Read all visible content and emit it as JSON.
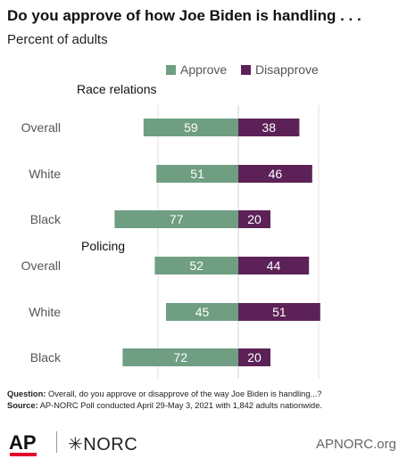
{
  "title": "Do you approve of how Joe Biden is handling . . .",
  "subtitle": "Percent of adults",
  "legend": [
    {
      "label": "Approve",
      "color": "#6f9e82"
    },
    {
      "label": "Disapprove",
      "color": "#5c2258"
    }
  ],
  "chart_data": {
    "type": "bar",
    "orientation": "diverging-horizontal",
    "groups": [
      {
        "label": "Race relations",
        "rows": [
          {
            "category": "Overall",
            "approve": 59,
            "disapprove": 38
          },
          {
            "category": "White",
            "approve": 51,
            "disapprove": 46
          },
          {
            "category": "Black",
            "approve": 77,
            "disapprove": 20
          }
        ]
      },
      {
        "label": "Policing",
        "rows": [
          {
            "category": "Overall",
            "approve": 52,
            "disapprove": 44
          },
          {
            "category": "White",
            "approve": 45,
            "disapprove": 51
          },
          {
            "category": "Black",
            "approve": 72,
            "disapprove": 20
          }
        ]
      }
    ],
    "series": [
      {
        "name": "Approve",
        "key": "approve",
        "color": "#6f9e82"
      },
      {
        "name": "Disapprove",
        "key": "disapprove",
        "color": "#5c2258"
      }
    ],
    "grid": true,
    "legend_position": "top-right"
  },
  "footnote": {
    "question_label": "Question:",
    "question_text": " Overall, do you approve or disapprove of the way Joe Biden is handling...?",
    "source_label": "Source:",
    "source_text": " AP-NORC Poll conducted April 29-May 3, 2021 with 1,842 adults nationwide."
  },
  "branding": {
    "ap_logo": "AP",
    "norc_logo": "NORC",
    "norc_mark_icon": "star-asterisk-icon",
    "site": "APNORC.org"
  }
}
